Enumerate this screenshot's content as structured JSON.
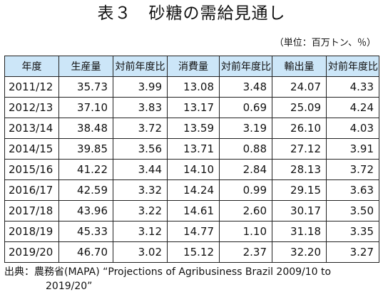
{
  "title": "表３　砂糖の需給見通し",
  "unit_note": "（単位：百万トン、％）",
  "table": {
    "headers": [
      "年度",
      "生産量",
      "対前年度比",
      "消費量",
      "対前年度比",
      "輸出量",
      "対前年度比"
    ],
    "rows": [
      [
        "2011/12",
        "35.73",
        "3.99",
        "13.08",
        "3.48",
        "24.07",
        "4.33"
      ],
      [
        "2012/13",
        "37.10",
        "3.83",
        "13.17",
        "0.69",
        "25.09",
        "4.24"
      ],
      [
        "2013/14",
        "38.48",
        "3.72",
        "13.59",
        "3.19",
        "26.10",
        "4.03"
      ],
      [
        "2014/15",
        "39.85",
        "3.56",
        "13.71",
        "0.88",
        "27.12",
        "3.91"
      ],
      [
        "2015/16",
        "41.22",
        "3.44",
        "14.10",
        "2.84",
        "28.13",
        "3.72"
      ],
      [
        "2016/17",
        "42.59",
        "3.32",
        "14.24",
        "0.99",
        "29.15",
        "3.63"
      ],
      [
        "2017/18",
        "43.96",
        "3.22",
        "14.61",
        "2.60",
        "30.17",
        "3.50"
      ],
      [
        "2018/19",
        "45.33",
        "3.12",
        "14.77",
        "1.10",
        "31.18",
        "3.35"
      ],
      [
        "2019/20",
        "46.70",
        "3.02",
        "15.12",
        "2.37",
        "32.20",
        "3.27"
      ]
    ]
  },
  "source": {
    "line1": "出典：農務省(MAPA) “Projections of Agribusiness Brazil 2009/10 to",
    "line2": "2019/20”"
  }
}
